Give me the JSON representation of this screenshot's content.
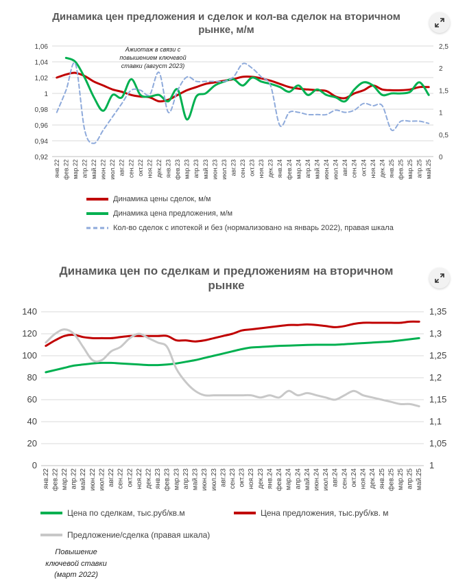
{
  "toolbar": {
    "expand_icon": "expand-arrows-icon"
  },
  "chart_data": [
    {
      "type": "line",
      "title": "Динамика цен предложения и сделок и кол-ва сделок на вторичном рынке, м/м",
      "annotation": "Ажиотаж в связи с повышением ключевой ставки (август 2023)",
      "categories": [
        "янв.22",
        "фев.22",
        "мар.22",
        "апр.22",
        "май.22",
        "июн.22",
        "июл.22",
        "авг.22",
        "сен.22",
        "окт.22",
        "ноя.22",
        "дек.22",
        "янв.23",
        "фев.23",
        "мар.23",
        "апр.23",
        "май.23",
        "июн.23",
        "июл.23",
        "авг.23",
        "сен.23",
        "окт.23",
        "ноя.23",
        "дек.23",
        "янв.24",
        "фев.24",
        "мар.24",
        "апр.24",
        "май.24",
        "июн.24",
        "июл.24",
        "авг.24",
        "сен.24",
        "окт.24",
        "ноя.24",
        "дек.24",
        "янв.25",
        "фев.25",
        "мар.25",
        "апр.25",
        "май.25"
      ],
      "y_left": {
        "min": 0.92,
        "max": 1.06,
        "ticks": [
          "0,92",
          "0,94",
          "0,96",
          "0,98",
          "1",
          "1,02",
          "1,04",
          "1,06"
        ]
      },
      "y_right": {
        "min": 0,
        "max": 2.5,
        "ticks": [
          "0",
          "0,5",
          "1",
          "1,5",
          "2",
          "2,5"
        ]
      },
      "series": [
        {
          "name": "Динамика цены сделок, м/м",
          "axis": "left",
          "color": "#c00000",
          "width": 3,
          "dash": "",
          "values": [
            1.02,
            1.024,
            1.026,
            1.022,
            1.015,
            1.01,
            1.005,
            1.002,
            0.998,
            0.996,
            0.995,
            0.99,
            0.992,
            0.998,
            1.004,
            1.008,
            1.012,
            1.014,
            1.016,
            1.018,
            1.021,
            1.021,
            1.019,
            1.016,
            1.012,
            1.008,
            1.006,
            1.005,
            1.004,
            1.003,
            0.996,
            0.994,
            1.0,
            1.004,
            1.01,
            1.005,
            1.004,
            1.004,
            1.005,
            1.008,
            1.008
          ]
        },
        {
          "name": "Динамика цена предложения, м/м",
          "axis": "left",
          "color": "#00b050",
          "width": 3,
          "dash": "",
          "values": [
            null,
            1.045,
            1.04,
            1.02,
            0.995,
            0.978,
            0.998,
            0.995,
            1.018,
            0.998,
            0.996,
            0.998,
            0.99,
            1.005,
            0.967,
            0.996,
            1.0,
            1.01,
            1.015,
            1.018,
            1.01,
            1.02,
            1.015,
            1.012,
            1.008,
            1.002,
            1.01,
            0.998,
            1.005,
            0.998,
            0.995,
            0.99,
            1.005,
            1.014,
            1.01,
            0.998,
            1.0,
            1.0,
            1.002,
            1.014,
            0.998
          ]
        },
        {
          "name": "Кол-во сделок с ипотекой и без (нормализовано на январь 2022),  правая шкала",
          "axis": "right",
          "color": "#8eaadb",
          "width": 2,
          "dash": "6,4",
          "values": [
            1.0,
            1.5,
            2.1,
            0.6,
            0.3,
            0.6,
            0.9,
            1.2,
            1.5,
            1.5,
            1.4,
            1.9,
            1.0,
            1.5,
            1.8,
            1.7,
            1.7,
            1.7,
            1.7,
            1.8,
            2.1,
            2.0,
            1.8,
            1.6,
            0.7,
            1.0,
            1.0,
            0.95,
            0.95,
            0.95,
            1.05,
            1.0,
            1.05,
            1.2,
            1.15,
            1.15,
            0.6,
            0.8,
            0.8,
            0.8,
            0.75
          ]
        }
      ]
    },
    {
      "type": "line",
      "title": "Динамика цен по сделкам и предложениям на вторичном рынке",
      "annotation": "Повышение ключевой ставки (март 2022)",
      "categories": [
        "янв.22",
        "фев.22",
        "мар.22",
        "апр.22",
        "май.22",
        "июн.22",
        "июл.22",
        "авг.22",
        "сен.22",
        "окт.22",
        "ноя.22",
        "дек.22",
        "янв.23",
        "фев.23",
        "мар.23",
        "апр.23",
        "май.23",
        "июн.23",
        "июл.23",
        "авг.23",
        "сен.23",
        "окт.23",
        "ноя.23",
        "дек.23",
        "янв.24",
        "фев.24",
        "мар.24",
        "апр.24",
        "май.24",
        "июн.24",
        "июл.24",
        "авг.24",
        "сен.24",
        "окт.24",
        "ноя.24",
        "дек.24",
        "янв.25",
        "фев.25",
        "мар.25",
        "апр.25",
        "май.25"
      ],
      "y_left": {
        "min": 0,
        "max": 140,
        "ticks": [
          "0",
          "20",
          "40",
          "60",
          "80",
          "100",
          "120",
          "140"
        ]
      },
      "y_right": {
        "min": 1.0,
        "max": 1.35,
        "ticks": [
          "1",
          "1,05",
          "1,1",
          "1,15",
          "1,2",
          "1,25",
          "1,3",
          "1,35"
        ]
      },
      "series": [
        {
          "name": "Цена по сделкам, тыс.руб/кв.м",
          "axis": "left",
          "color": "#00b050",
          "width": 3,
          "dash": "",
          "values": [
            85,
            87,
            89,
            91,
            92,
            93,
            93.5,
            93.5,
            93,
            92.5,
            92,
            91.5,
            91.5,
            92,
            93,
            94.5,
            96,
            98,
            100,
            102,
            104,
            106,
            107.5,
            108,
            108.5,
            109,
            109.2,
            109.5,
            109.8,
            110,
            110,
            110,
            110.5,
            111,
            111.5,
            112,
            112.5,
            113,
            114,
            115,
            116
          ]
        },
        {
          "name": "Цена предложения, тыс.руб/кв. м",
          "axis": "left",
          "color": "#c00000",
          "width": 3,
          "dash": "",
          "values": [
            109,
            114,
            118,
            119,
            117,
            116,
            116,
            116,
            117,
            118,
            118,
            118,
            118,
            118,
            114,
            114,
            113,
            114,
            116,
            118,
            120,
            123,
            124,
            125,
            126,
            127,
            128,
            128,
            128.5,
            128,
            127,
            126,
            127,
            129,
            130,
            130,
            130,
            130,
            130,
            131,
            131
          ]
        },
        {
          "name": "Предложение/сделка (правая шкала)",
          "axis": "right",
          "color": "#c8c8c8",
          "width": 3,
          "dash": "",
          "values": [
            1.28,
            1.3,
            1.31,
            1.3,
            1.27,
            1.24,
            1.24,
            1.26,
            1.27,
            1.29,
            1.3,
            1.29,
            1.28,
            1.27,
            1.22,
            1.19,
            1.17,
            1.16,
            1.16,
            1.16,
            1.16,
            1.16,
            1.16,
            1.155,
            1.16,
            1.155,
            1.17,
            1.16,
            1.165,
            1.16,
            1.155,
            1.15,
            1.16,
            1.17,
            1.16,
            1.155,
            1.15,
            1.145,
            1.14,
            1.14,
            1.135
          ]
        }
      ]
    }
  ]
}
